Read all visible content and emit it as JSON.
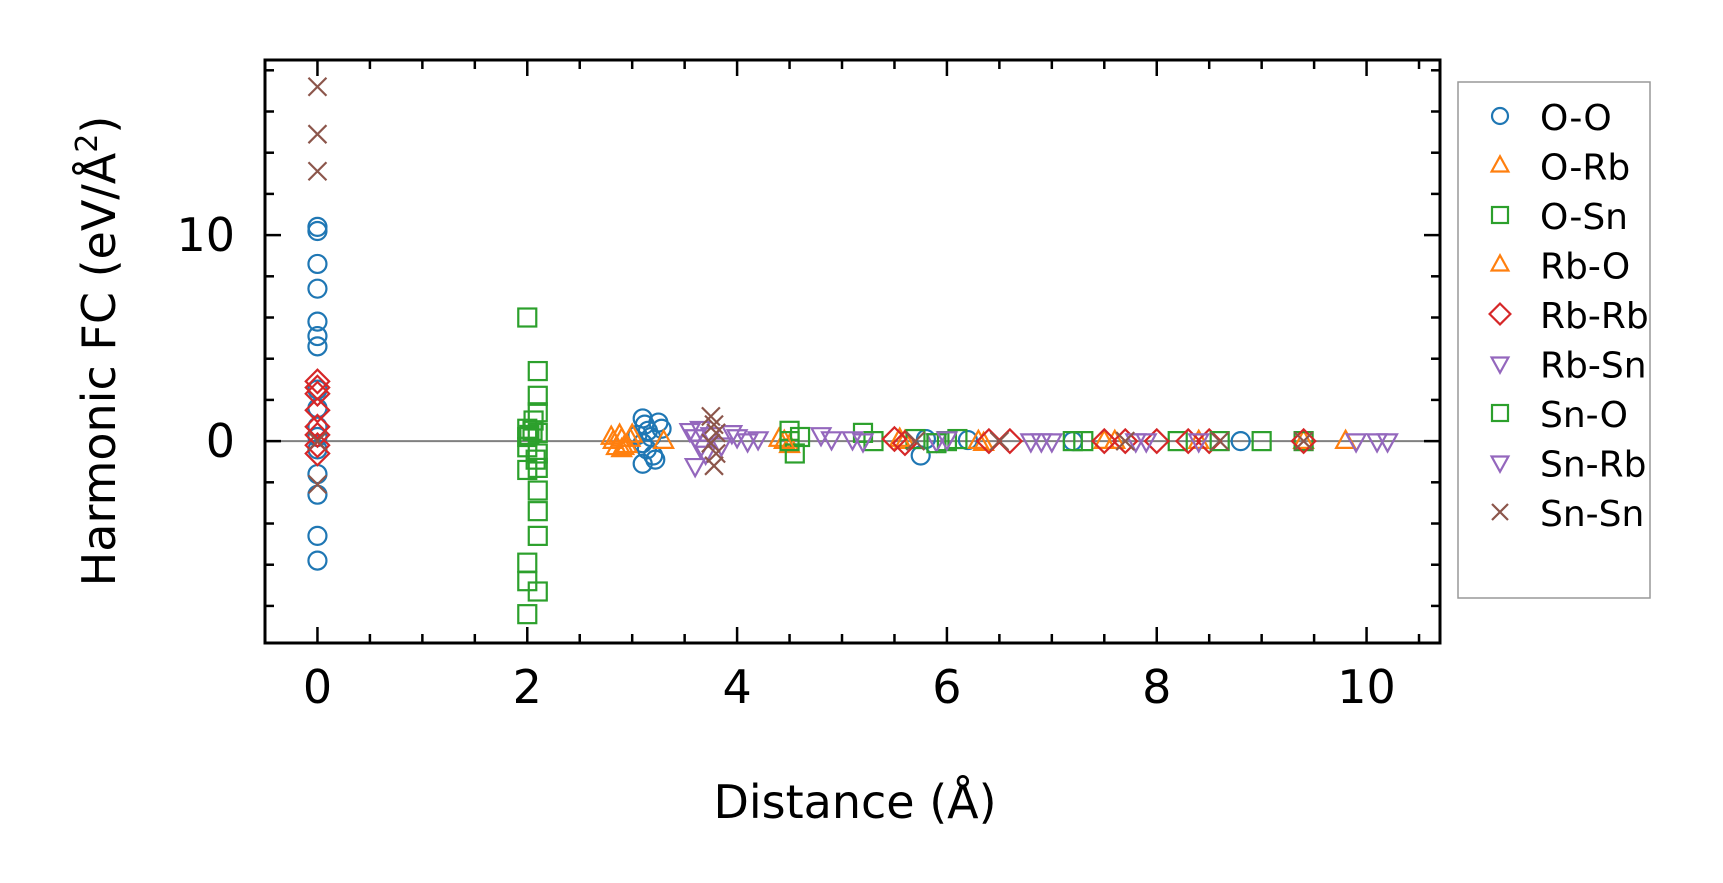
{
  "chart_data": {
    "type": "scatter",
    "xlabel": "Distance (Å)",
    "ylabel": "Harmonic FC (eV/Å²)",
    "ylabel_parts": {
      "main": "Harmonic FC (eV/Å",
      "sup": "2",
      "close": ")"
    },
    "xlim": [
      -0.5,
      10.7
    ],
    "ylim": [
      -9.8,
      18.5
    ],
    "xticks": [
      0,
      2,
      4,
      6,
      8,
      10
    ],
    "xtick_labels": [
      "0",
      "2",
      "4",
      "6",
      "8",
      "10"
    ],
    "yticks": [
      0,
      10
    ],
    "ytick_labels": [
      "0",
      "10"
    ],
    "zero_line": true,
    "grid": false,
    "legend_position": "outside-right",
    "series": [
      {
        "name": "O-O",
        "marker": "circle",
        "color": "#1f77b4",
        "points": [
          [
            0,
            10.4
          ],
          [
            0,
            10.2
          ],
          [
            0,
            8.6
          ],
          [
            0,
            7.4
          ],
          [
            0,
            5.8
          ],
          [
            0,
            5.1
          ],
          [
            0,
            4.6
          ],
          [
            0,
            2.5
          ],
          [
            0,
            1.6
          ],
          [
            0,
            0.7
          ],
          [
            0,
            0.2
          ],
          [
            0,
            -0.4
          ],
          [
            0,
            -1.6
          ],
          [
            0,
            -2.6
          ],
          [
            0,
            -4.6
          ],
          [
            0,
            -5.8
          ],
          [
            3.1,
            1.1
          ],
          [
            3.12,
            0.8
          ],
          [
            3.15,
            0.5
          ],
          [
            3.18,
            0.2
          ],
          [
            3.1,
            -0.1
          ],
          [
            3.14,
            -0.4
          ],
          [
            3.2,
            -0.7
          ],
          [
            3.1,
            -1.1
          ],
          [
            3.25,
            0.9
          ],
          [
            3.22,
            -0.9
          ],
          [
            3.05,
            0.3
          ],
          [
            3.28,
            0.6
          ],
          [
            5.75,
            -0.7
          ],
          [
            5.8,
            0.1
          ],
          [
            6.2,
            0.05
          ],
          [
            7.2,
            0.0
          ],
          [
            8.8,
            0.0
          ]
        ]
      },
      {
        "name": "O-Rb",
        "marker": "triangle-up",
        "color": "#ff7f0e",
        "points": [
          [
            2.8,
            0.2
          ],
          [
            2.85,
            -0.3
          ],
          [
            2.9,
            0.1
          ],
          [
            2.95,
            -0.2
          ],
          [
            3.0,
            0.3
          ],
          [
            2.9,
            -0.4
          ],
          [
            3.3,
            0.0
          ],
          [
            4.4,
            0.1
          ],
          [
            4.5,
            -0.2
          ],
          [
            5.6,
            0.0
          ],
          [
            6.3,
            0.0
          ],
          [
            7.5,
            0.0
          ],
          [
            9.4,
            0.0
          ],
          [
            9.8,
            0.0
          ]
        ]
      },
      {
        "name": "O-Sn",
        "marker": "square",
        "color": "#2ca02c",
        "points": [
          [
            2.0,
            6.0
          ],
          [
            2.0,
            0.6
          ],
          [
            2.0,
            0.2
          ],
          [
            2.0,
            -0.3
          ],
          [
            2.0,
            -1.4
          ],
          [
            2.0,
            -5.9
          ],
          [
            2.0,
            -6.8
          ],
          [
            2.0,
            -8.4
          ],
          [
            2.05,
            0.5
          ],
          [
            2.1,
            3.4
          ],
          [
            2.1,
            2.2
          ],
          [
            2.1,
            1.4
          ],
          [
            2.1,
            0.4
          ],
          [
            2.1,
            -0.6
          ],
          [
            2.1,
            -1.3
          ],
          [
            2.1,
            -2.4
          ],
          [
            2.1,
            -3.4
          ],
          [
            2.1,
            -4.6
          ],
          [
            2.1,
            -7.3
          ],
          [
            4.5,
            0.5
          ],
          [
            4.55,
            -0.6
          ],
          [
            4.6,
            0.2
          ],
          [
            5.2,
            0.4
          ],
          [
            5.3,
            0.0
          ],
          [
            5.7,
            0.1
          ],
          [
            6.0,
            0.0
          ],
          [
            7.3,
            0.0
          ],
          [
            8.2,
            0.0
          ],
          [
            9.0,
            0.0
          ],
          [
            9.4,
            0.0
          ]
        ]
      },
      {
        "name": "Rb-O",
        "marker": "triangle-up",
        "color": "#ff7f0e",
        "points": [
          [
            2.82,
            0.0
          ],
          [
            2.88,
            0.3
          ],
          [
            2.92,
            -0.3
          ],
          [
            2.98,
            0.1
          ],
          [
            4.45,
            0.0
          ],
          [
            5.55,
            0.1
          ],
          [
            6.35,
            -0.1
          ],
          [
            7.6,
            0.0
          ],
          [
            8.4,
            0.0
          ]
        ]
      },
      {
        "name": "Rb-Rb",
        "marker": "diamond",
        "color": "#d62728",
        "points": [
          [
            0,
            2.9
          ],
          [
            0,
            2.6
          ],
          [
            0,
            2.3
          ],
          [
            0,
            1.5
          ],
          [
            0,
            0.7
          ],
          [
            0,
            0.3
          ],
          [
            0,
            -0.2
          ],
          [
            0,
            -0.6
          ],
          [
            5.5,
            0.1
          ],
          [
            5.6,
            -0.1
          ],
          [
            6.4,
            0.0
          ],
          [
            6.6,
            0.0
          ],
          [
            7.5,
            0.0
          ],
          [
            7.7,
            0.0
          ],
          [
            8.0,
            0.0
          ],
          [
            8.3,
            0.0
          ],
          [
            8.5,
            0.0
          ],
          [
            9.4,
            0.0
          ]
        ]
      },
      {
        "name": "Rb-Sn",
        "marker": "triangle-down",
        "color": "#9467bd",
        "points": [
          [
            3.55,
            0.5
          ],
          [
            3.6,
            0.2
          ],
          [
            3.65,
            -0.3
          ],
          [
            3.7,
            -0.6
          ],
          [
            3.6,
            -1.2
          ],
          [
            3.75,
            0.3
          ],
          [
            4.0,
            0.2
          ],
          [
            4.1,
            0.0
          ],
          [
            4.2,
            0.1
          ],
          [
            4.8,
            0.3
          ],
          [
            5.1,
            0.1
          ],
          [
            5.9,
            0.0
          ],
          [
            6.8,
            0.0
          ],
          [
            7.0,
            0.0
          ],
          [
            7.9,
            0.0
          ],
          [
            9.9,
            0.0
          ],
          [
            10.1,
            0.0
          ]
        ]
      },
      {
        "name": "Sn-O",
        "marker": "square",
        "color": "#2ca02c",
        "points": [
          [
            2.02,
            0.3
          ],
          [
            2.08,
            -0.9
          ],
          [
            2.06,
            1.0
          ],
          [
            4.5,
            0.0
          ],
          [
            5.9,
            -0.1
          ],
          [
            6.1,
            0.1
          ],
          [
            7.2,
            0.0
          ],
          [
            8.6,
            0.0
          ]
        ]
      },
      {
        "name": "Sn-Rb",
        "marker": "triangle-down",
        "color": "#9467bd",
        "points": [
          [
            3.65,
            0.6
          ],
          [
            3.85,
            -0.2
          ],
          [
            3.95,
            0.4
          ],
          [
            4.9,
            0.1
          ],
          [
            5.2,
            0.0
          ],
          [
            6.0,
            0.1
          ],
          [
            6.9,
            0.0
          ],
          [
            7.8,
            0.0
          ],
          [
            8.4,
            0.0
          ],
          [
            10.2,
            0.0
          ]
        ]
      },
      {
        "name": "Sn-Sn",
        "marker": "x",
        "color": "#8c564b",
        "points": [
          [
            0,
            17.2
          ],
          [
            0,
            14.9
          ],
          [
            0,
            13.1
          ],
          [
            0,
            0.0
          ],
          [
            0,
            -2.1
          ],
          [
            3.75,
            1.2
          ],
          [
            3.78,
            0.8
          ],
          [
            3.8,
            0.4
          ],
          [
            3.75,
            -0.1
          ],
          [
            3.8,
            -0.6
          ],
          [
            3.78,
            -1.2
          ],
          [
            5.7,
            0.0
          ],
          [
            6.5,
            0.0
          ],
          [
            7.7,
            0.0
          ],
          [
            8.6,
            0.0
          ],
          [
            9.4,
            0.0
          ]
        ]
      }
    ]
  }
}
